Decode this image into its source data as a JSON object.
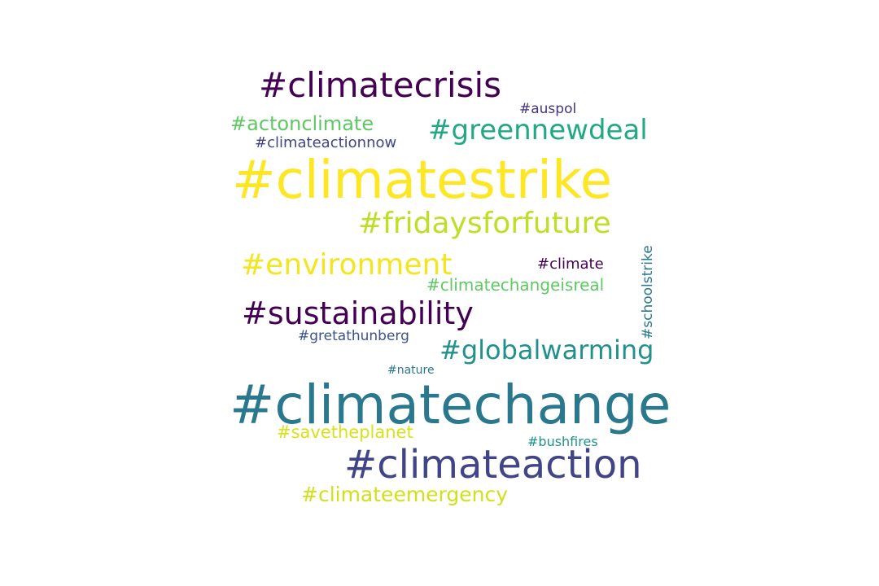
{
  "palette": {
    "dark_purple": "#440154",
    "indigo": "#3b528b",
    "dark_blue": "#414487",
    "teal": "#2a788e",
    "teal_green": "#21918c",
    "green": "#22a884",
    "light_green": "#5ec962",
    "lime": "#7ad151",
    "yellow_green": "#bddf26",
    "yellow": "#fde725"
  },
  "words": [
    {
      "text": "#climatecrisis",
      "color": "#440154"
    },
    {
      "text": "#auspol",
      "color": "#46337e"
    },
    {
      "text": "#actonclimate",
      "color": "#5ec962"
    },
    {
      "text": "#greennewdeal",
      "color": "#22a884"
    },
    {
      "text": "#climateactionnow",
      "color": "#414487"
    },
    {
      "text": "#climatestrike",
      "color": "#fde725"
    },
    {
      "text": "#fridaysforfuture",
      "color": "#bddf26"
    },
    {
      "text": "#environment",
      "color": "#f4e61e"
    },
    {
      "text": "#climate",
      "color": "#440154"
    },
    {
      "text": "#climatechangeisreal",
      "color": "#5ec962"
    },
    {
      "text": "#schoolstrike",
      "color": "#2a788e"
    },
    {
      "text": "#sustainability",
      "color": "#440154"
    },
    {
      "text": "#gretathunberg",
      "color": "#3b528b"
    },
    {
      "text": "#globalwarming",
      "color": "#21918c"
    },
    {
      "text": "#nature",
      "color": "#2a788e"
    },
    {
      "text": "#climatechange",
      "color": "#2a788e"
    },
    {
      "text": "#savetheplanet",
      "color": "#d8e219"
    },
    {
      "text": "#bushfires",
      "color": "#21918c"
    },
    {
      "text": "#climateaction",
      "color": "#414487"
    },
    {
      "text": "#climateemergency",
      "color": "#d0e11c"
    }
  ]
}
